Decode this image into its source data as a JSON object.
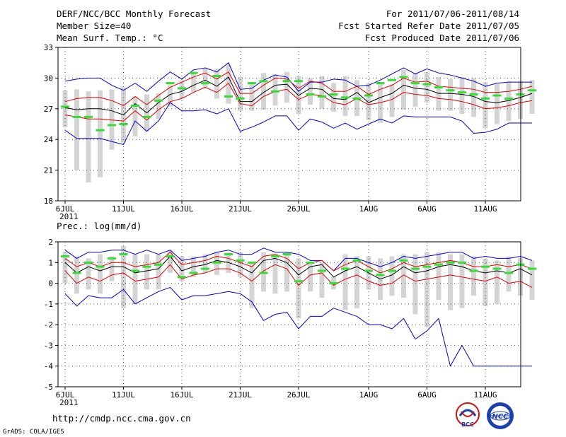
{
  "header": {
    "title": "DERF/NCC/BCC Monthly Forecast",
    "member_size": "Member Size=40",
    "variable": "Mean Surf. Temp.: °C",
    "period": "For 2011/07/06-2011/08/14",
    "start_date": "Fcst Started Refer Date 2011/07/05",
    "produced_date": "Fcst Produced Date 2011/07/06"
  },
  "footer": {
    "url": "http://cmdp.ncc.cma.gov.cn",
    "credit": "GrADS: COLA/IGES"
  },
  "logos": {
    "bcc": "BCC",
    "ncc": "NCC"
  },
  "colors": {
    "box": "#d4d4d4",
    "member": "#33dd33",
    "mean": "#000000",
    "spread": "#dd0000",
    "envelope": "#0000cc",
    "grid": "#555555"
  },
  "chart_data": [
    {
      "id": "temperature",
      "type": "box",
      "title": "Mean Surf. Temp.: °C",
      "ylim": [
        18,
        33
      ],
      "yticks": [
        "18",
        "21",
        "24",
        "27",
        "30",
        "33"
      ],
      "xticks": [
        "6JUL",
        "11JUL",
        "16JUL",
        "21JUL",
        "26JUL",
        "1AUG",
        "6AUG",
        "11AUG"
      ],
      "year_label": "2011",
      "box_low": [
        25.2,
        21.0,
        19.8,
        20.3,
        23.0,
        23.7,
        24.3,
        24.8,
        26.0,
        27.2,
        28.0,
        28.6,
        29.0,
        28.0,
        27.5,
        26.8,
        26.8,
        26.9,
        27.3,
        27.6,
        26.5,
        27.4,
        27.0,
        26.7,
        26.3,
        26.3,
        25.9,
        25.6,
        26.2,
        26.9,
        27.2,
        27.6,
        26.8,
        26.8,
        26.5,
        26.2,
        25.1,
        25.5,
        25.8,
        26.0,
        26.5
      ],
      "box_high": [
        28.8,
        28.9,
        28.7,
        28.8,
        28.9,
        29.1,
        28.2,
        28.4,
        28.5,
        29.3,
        29.8,
        30.6,
        31.0,
        30.9,
        31.3,
        30.1,
        29.5,
        30.5,
        30.4,
        30.6,
        30.2,
        30.0,
        30.2,
        29.5,
        30.2,
        29.8,
        29.5,
        29.6,
        29.4,
        30.8,
        30.5,
        30.6,
        30.1,
        29.9,
        30.1,
        30.0,
        29.6,
        29.4,
        29.7,
        29.7,
        29.8
      ],
      "member": [
        27.2,
        26.2,
        26.2,
        24.9,
        25.4,
        25.5,
        27.3,
        26.2,
        27.8,
        29.5,
        29.0,
        30.5,
        29.5,
        30.2,
        28.2,
        28.0,
        29.5,
        29.7,
        28.7,
        29.7,
        29.7,
        28.4,
        28.2,
        28.4,
        28.1,
        28.0,
        28.3,
        29.5,
        29.8,
        30.1,
        29.5,
        29.4,
        29.1,
        28.8,
        28.6,
        28.4,
        28.0,
        28.3,
        28.0,
        28.4,
        28.8
      ],
      "mean": [
        27.1,
        26.9,
        27.0,
        27.0,
        26.8,
        26.4,
        27.5,
        26.6,
        27.6,
        28.4,
        28.7,
        29.3,
        29.8,
        29.2,
        30.1,
        27.7,
        27.7,
        28.6,
        29.3,
        29.4,
        28.3,
        29.0,
        28.9,
        28.0,
        27.9,
        28.6,
        27.6,
        28.1,
        28.5,
        29.3,
        29.0,
        28.9,
        28.5,
        28.5,
        28.4,
        28.2,
        27.7,
        27.6,
        27.8,
        28.1,
        28.5
      ],
      "upper": [
        27.7,
        28.0,
        28.1,
        28.1,
        27.8,
        27.3,
        28.2,
        27.4,
        28.3,
        29.1,
        29.6,
        30.1,
        30.5,
        29.9,
        30.6,
        28.5,
        28.5,
        29.3,
        30.0,
        29.9,
        29.0,
        29.7,
        29.5,
        28.7,
        28.7,
        29.2,
        28.4,
        28.9,
        29.3,
        30.0,
        29.6,
        29.7,
        29.2,
        29.1,
        29.0,
        28.9,
        28.6,
        28.6,
        28.7,
        28.9,
        29.2
      ],
      "lower": [
        26.4,
        26.2,
        26.0,
        26.0,
        25.9,
        25.8,
        26.8,
        25.9,
        26.9,
        27.7,
        28.0,
        28.6,
        29.1,
        28.6,
        29.5,
        27.5,
        27.3,
        28.2,
        28.7,
        28.9,
        27.9,
        28.4,
        28.3,
        27.6,
        27.4,
        28.0,
        27.4,
        27.6,
        27.9,
        28.6,
        28.4,
        28.3,
        28.0,
        27.9,
        27.7,
        27.4,
        27.0,
        27.1,
        27.3,
        27.6,
        27.8
      ],
      "env_max": [
        29.7,
        29.9,
        30.0,
        30.0,
        29.3,
        28.8,
        29.5,
        28.7,
        29.7,
        30.6,
        29.9,
        30.8,
        31.0,
        30.6,
        31.5,
        28.9,
        29.0,
        29.8,
        30.3,
        30.1,
        28.7,
        29.6,
        29.6,
        29.9,
        29.8,
        29.2,
        29.3,
        29.8,
        30.4,
        31.0,
        30.4,
        30.9,
        30.5,
        30.3,
        30.0,
        29.7,
        29.2,
        29.5,
        29.6,
        29.6,
        29.6
      ],
      "env_min": [
        24.9,
        24.1,
        24.1,
        24.1,
        23.8,
        23.5,
        25.8,
        24.8,
        25.8,
        27.6,
        26.8,
        26.8,
        26.9,
        26.5,
        27.0,
        24.8,
        25.2,
        25.7,
        26.3,
        26.3,
        24.9,
        26.0,
        25.7,
        25.1,
        25.6,
        25.0,
        25.5,
        26.0,
        25.6,
        26.3,
        26.2,
        26.2,
        26.2,
        26.2,
        25.8,
        24.6,
        24.7,
        25.0,
        25.6,
        25.6,
        25.6
      ]
    },
    {
      "id": "precipitation",
      "type": "box",
      "title": "Prec.: log(mm/d)",
      "ylim": [
        -5,
        2
      ],
      "yticks": [
        "-5",
        "-4",
        "-3",
        "-2",
        "-1",
        "0",
        "1",
        "2"
      ],
      "xticks": [
        "6JUL",
        "11JUL",
        "16JUL",
        "21JUL",
        "26JUL",
        "1AUG",
        "6AUG",
        "11AUG"
      ],
      "year_label": "2011",
      "box_low": [
        0.0,
        -0.5,
        -0.3,
        -0.5,
        0.1,
        -1.2,
        -1.0,
        -0.3,
        -0.3,
        0.5,
        0.1,
        0.3,
        0.5,
        0.4,
        0.5,
        0.3,
        -1.2,
        -0.4,
        -0.5,
        -0.4,
        -1.7,
        -0.4,
        -0.7,
        -0.3,
        -1.3,
        -1.2,
        -0.3,
        -0.8,
        -0.6,
        -0.7,
        -1.5,
        -2.1,
        -0.8,
        -1.3,
        -1.2,
        -0.6,
        -1.1,
        -1.0,
        -0.4,
        -0.6,
        -0.8
      ],
      "box_high": [
        1.5,
        1.3,
        1.2,
        1.4,
        1.3,
        1.8,
        1.4,
        1.4,
        1.4,
        1.6,
        1.3,
        1.3,
        1.4,
        1.5,
        1.5,
        1.5,
        1.0,
        1.5,
        1.4,
        1.5,
        1.2,
        1.0,
        1.0,
        0.3,
        1.4,
        1.3,
        1.3,
        1.2,
        1.3,
        1.4,
        1.4,
        1.5,
        1.5,
        1.4,
        1.4,
        1.3,
        1.2,
        1.1,
        1.3,
        1.2,
        1.1
      ],
      "member": [
        1.3,
        0.5,
        1.0,
        0.8,
        1.2,
        1.4,
        0.6,
        0.8,
        0.9,
        1.3,
        0.3,
        0.5,
        0.7,
        1.0,
        1.4,
        1.1,
        1.0,
        0.5,
        1.3,
        1.4,
        0.1,
        1.0,
        0.6,
        0.0,
        0.7,
        1.1,
        0.6,
        0.4,
        0.6,
        1.1,
        0.7,
        0.8,
        0.9,
        1.0,
        1.0,
        0.6,
        0.8,
        0.7,
        0.5,
        0.9,
        0.7
      ],
      "mean": [
        1.0,
        0.5,
        0.8,
        0.6,
        0.8,
        0.8,
        0.5,
        0.6,
        0.7,
        1.3,
        0.6,
        0.8,
        0.9,
        1.1,
        1.0,
        0.8,
        0.5,
        1.1,
        1.2,
        1.0,
        0.4,
        0.8,
        0.9,
        0.3,
        0.6,
        0.8,
        0.5,
        0.2,
        0.4,
        0.8,
        0.5,
        0.6,
        0.8,
        0.9,
        0.8,
        0.6,
        0.5,
        0.6,
        0.5,
        0.7,
        0.4
      ],
      "upper": [
        1.2,
        0.8,
        1.0,
        0.8,
        1.0,
        1.0,
        0.8,
        0.9,
        1.0,
        1.5,
        0.9,
        1.0,
        1.1,
        1.3,
        1.2,
        1.0,
        0.8,
        1.3,
        1.4,
        1.2,
        0.7,
        1.0,
        1.1,
        0.6,
        0.9,
        1.1,
        0.8,
        0.5,
        0.7,
        1.0,
        0.8,
        0.9,
        1.0,
        1.1,
        1.0,
        0.8,
        0.8,
        0.9,
        0.8,
        0.9,
        0.7
      ],
      "lower": [
        0.6,
        0.0,
        0.3,
        0.1,
        0.4,
        0.5,
        0.1,
        0.2,
        0.3,
        0.9,
        0.2,
        0.4,
        0.5,
        0.7,
        0.7,
        0.5,
        0.1,
        0.6,
        0.9,
        0.7,
        -0.1,
        0.4,
        0.5,
        -0.1,
        0.2,
        0.4,
        0.1,
        -0.1,
        0.0,
        0.4,
        0.1,
        0.2,
        0.3,
        0.4,
        0.3,
        0.2,
        0.1,
        0.3,
        0.0,
        0.1,
        -0.2
      ],
      "env_max": [
        1.6,
        1.2,
        1.5,
        1.5,
        1.6,
        1.6,
        1.4,
        1.6,
        1.4,
        1.6,
        1.1,
        1.2,
        1.3,
        1.5,
        1.6,
        1.4,
        1.4,
        1.7,
        1.5,
        1.5,
        1.4,
        1.1,
        1.1,
        0.6,
        1.2,
        1.2,
        1.0,
        0.8,
        1.0,
        1.3,
        1.2,
        1.3,
        1.4,
        1.5,
        1.5,
        1.2,
        1.3,
        1.2,
        1.2,
        1.3,
        1.1
      ],
      "env_min": [
        -0.5,
        -1.1,
        -0.6,
        -0.7,
        -0.7,
        -0.3,
        -1.0,
        -0.7,
        -0.4,
        -0.2,
        -0.8,
        -0.6,
        -0.6,
        -0.5,
        -0.4,
        -0.5,
        -0.9,
        -1.8,
        -1.5,
        -1.4,
        -2.2,
        -1.6,
        -1.6,
        -1.2,
        -1.4,
        -1.6,
        -2.0,
        -2.0,
        -2.2,
        -1.7,
        -2.7,
        -2.3,
        -1.7,
        -4.0,
        -3.0,
        -4.0,
        -4.0,
        -4.0,
        -4.0,
        -4.0,
        -4.0
      ]
    }
  ]
}
